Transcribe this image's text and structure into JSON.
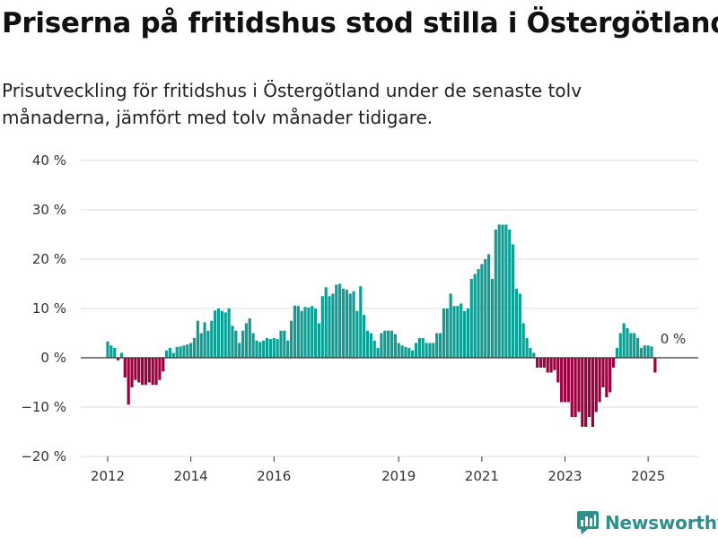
{
  "header": {
    "title": "Priserna på fritidshus stod stilla i Östergötland",
    "subtitle": "Prisutveckling för fritidshus i Östergötland under de senaste tolv månaderna, jämfört med tolv månader tidigare."
  },
  "brand": {
    "name": "Newsworthy",
    "color": "#2f8f8d"
  },
  "colors": {
    "positive": "#0f9e94",
    "negative": "#9b003f",
    "grid": "#dddddd",
    "zero_line": "#333333"
  },
  "chart_data": {
    "type": "bar",
    "title": "Priserna på fritidshus stod stilla i Östergötland",
    "ylabel": "",
    "xlabel": "",
    "ylim": [
      -20,
      40
    ],
    "y_ticks": [
      40,
      30,
      20,
      10,
      0,
      -10,
      -20
    ],
    "y_tick_labels": [
      "40 %",
      "30 %",
      "20 %",
      "10 %",
      "0 %",
      "−10 %",
      "−20 %"
    ],
    "x_ticks": [
      2012,
      2014,
      2016,
      2019,
      2021,
      2023,
      2025
    ],
    "x_tick_labels": [
      "2012",
      "2014",
      "2016",
      "2019",
      "2021",
      "2023",
      "2025"
    ],
    "start_date": "2012-01",
    "frequency": "monthly",
    "annotation": {
      "text": "0 %",
      "target": "last"
    },
    "values": [
      3.3,
      2.5,
      2.0,
      -0.5,
      1.0,
      -4.0,
      -9.5,
      -6.0,
      -4.5,
      -5.0,
      -5.5,
      -5.5,
      -5.0,
      -5.5,
      -5.5,
      -4.5,
      -2.8,
      1.5,
      2.0,
      1.0,
      2.2,
      2.3,
      2.5,
      2.7,
      3.0,
      4.0,
      7.5,
      5.0,
      7.2,
      5.5,
      7.5,
      9.6,
      10.0,
      9.5,
      9.2,
      10.0,
      6.5,
      5.5,
      3.0,
      5.5,
      7.0,
      8.0,
      5.0,
      3.5,
      3.2,
      3.5,
      4.0,
      3.8,
      4.0,
      3.8,
      5.5,
      5.5,
      3.5,
      7.5,
      10.6,
      10.5,
      9.5,
      10.3,
      10.2,
      10.5,
      10.0,
      7.0,
      12.5,
      14.3,
      12.5,
      13.0,
      14.8,
      15.0,
      14.0,
      13.8,
      13.0,
      13.5,
      9.5,
      14.5,
      8.7,
      5.5,
      5.0,
      3.5,
      2.0,
      5.0,
      5.5,
      5.5,
      5.5,
      4.8,
      3.0,
      2.5,
      2.2,
      2.0,
      1.5,
      3.0,
      4.0,
      4.0,
      3.0,
      3.0,
      3.0,
      5.0,
      5.0,
      10.0,
      10.0,
      13.0,
      10.5,
      10.5,
      11.0,
      9.5,
      10.0,
      16.0,
      17.0,
      18.0,
      19.0,
      20.0,
      21.0,
      16.0,
      26.0,
      27.0,
      27.0,
      27.0,
      26.0,
      23.0,
      14.0,
      13.0,
      7.0,
      4.0,
      2.0,
      1.0,
      -2.0,
      -2.0,
      -2.0,
      -3.0,
      -3.0,
      -2.5,
      -5.0,
      -9.0,
      -9.0,
      -9.0,
      -12.0,
      -12.0,
      -11.0,
      -14.0,
      -14.0,
      -12.0,
      -14.0,
      -11.0,
      -9.0,
      -6.0,
      -8.0,
      -7.0,
      -2.0,
      2.0,
      5.0,
      7.0,
      6.0,
      5.0,
      5.0,
      4.0,
      2.0,
      2.5,
      2.5,
      2.3,
      -3.0,
      0.0
    ]
  }
}
